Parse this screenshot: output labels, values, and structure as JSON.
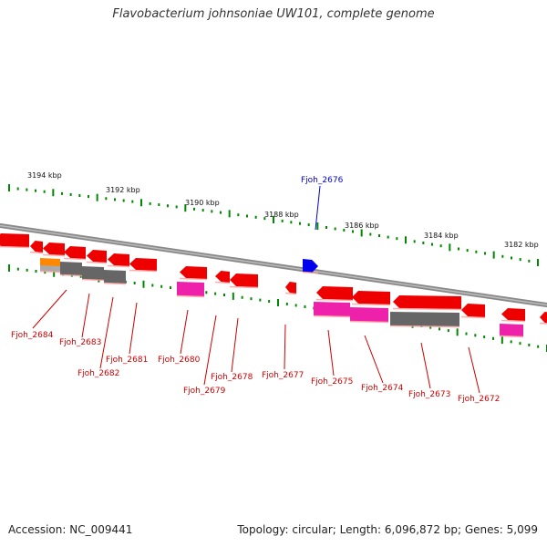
{
  "title": "Flavobacterium johnsoniae UW101, complete genome",
  "footer": {
    "accession": "Accession: NC_009441",
    "summary": "Topology: circular; Length: 6,096,872 bp; Genes: 5,099"
  },
  "colors": {
    "gene_red": "#ee0000",
    "gene_pink": "#ee22aa",
    "gene_gray": "#666666",
    "gene_orange": "#ff8800",
    "highlight_blue": "#0000ee",
    "tick_green": "#008800",
    "label_red": "#cc0000",
    "label_blue": "#0000cc",
    "backbone_gray": "#888888"
  },
  "scale_labels": [
    "3194 kbp",
    "3192 kbp",
    "3190 kbp",
    "3188 kbp",
    "3186 kbp",
    "3184 kbp",
    "3182 kbp"
  ],
  "highlighted_gene": "Fjoh_2676",
  "gene_labels": [
    "Fjoh_2684",
    "Fjoh_2683",
    "Fjoh_2682",
    "Fjoh_2681",
    "Fjoh_2680",
    "Fjoh_2679",
    "Fjoh_2678",
    "Fjoh_2677",
    "Fjoh_2675",
    "Fjoh_2674",
    "Fjoh_2673",
    "Fjoh_2672"
  ]
}
